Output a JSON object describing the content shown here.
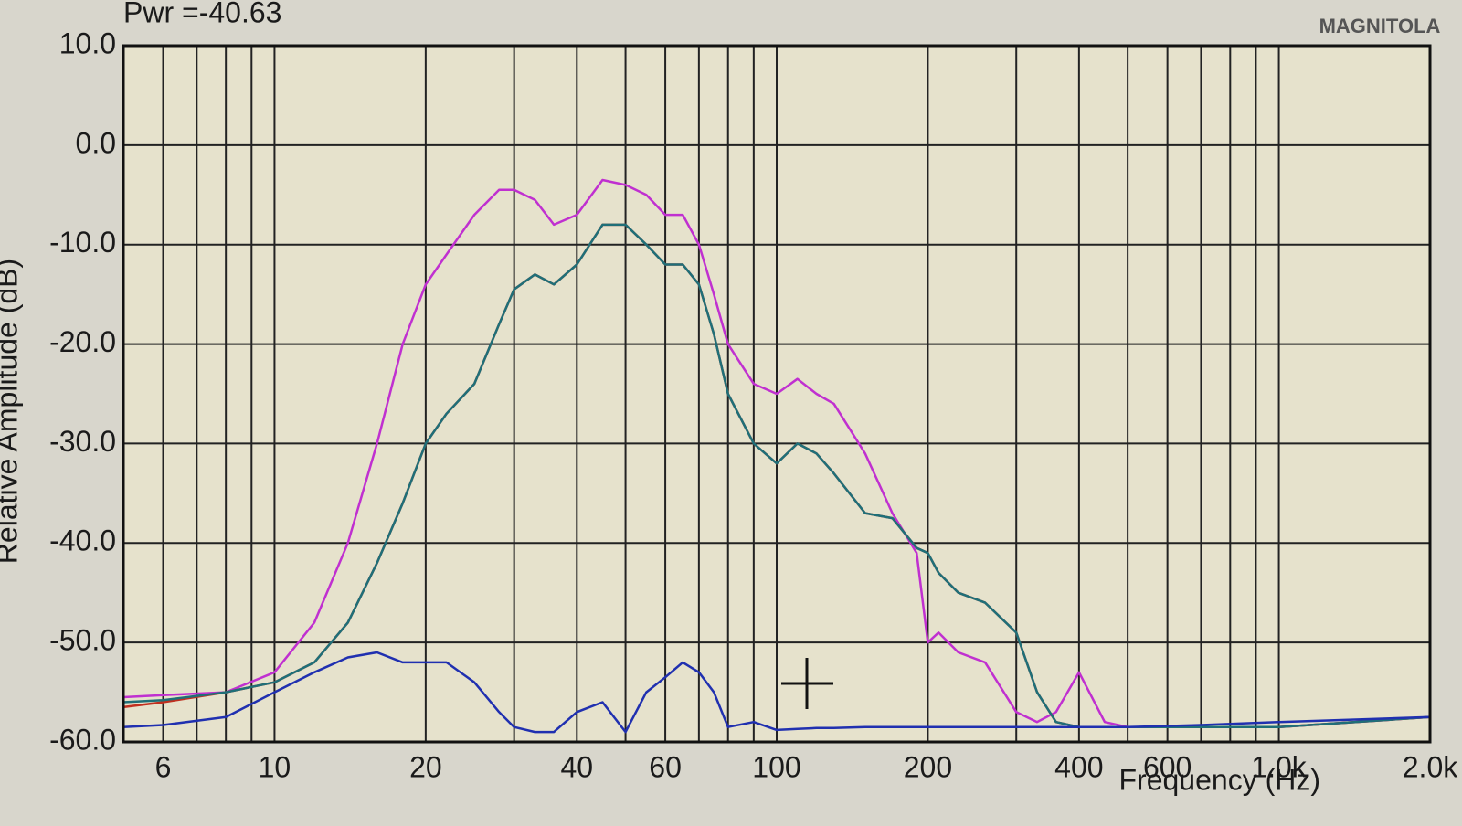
{
  "chart_data": {
    "type": "line",
    "title": "Pwr =-40.63",
    "y_label": "Relative Amplitude (dB)",
    "x_label": "Frequency (Hz)",
    "logo": "MAGNITOLA",
    "x_log": true,
    "grid": true,
    "xlim": [
      5,
      2000
    ],
    "ylim": [
      -60,
      10
    ],
    "xticks": [
      6,
      10,
      20,
      40,
      60,
      100,
      200,
      400,
      600,
      {
        "value": 1000,
        "label": "1.0k"
      },
      {
        "value": 2000,
        "label": "2.0k"
      }
    ],
    "xminor": [
      5,
      7,
      8,
      9,
      30,
      50,
      70,
      80,
      90,
      300,
      500,
      700,
      800,
      900
    ],
    "yticks": [
      {
        "value": -60,
        "label": "-60.0"
      },
      {
        "value": -50,
        "label": "-50.0"
      },
      {
        "value": -40,
        "label": "-40.0"
      },
      {
        "value": -30,
        "label": "-30.0"
      },
      {
        "value": -20,
        "label": "-20.0"
      },
      {
        "value": -10,
        "label": "-10.0"
      },
      {
        "value": 0,
        "label": "0.0"
      },
      {
        "value": 10,
        "label": "10.0"
      }
    ],
    "x": [
      5,
      6,
      8,
      10,
      12,
      14,
      16,
      18,
      20,
      22,
      25,
      28,
      30,
      33,
      36,
      40,
      45,
      50,
      55,
      60,
      65,
      70,
      75,
      80,
      90,
      100,
      110,
      120,
      130,
      150,
      170,
      190,
      200,
      210,
      230,
      260,
      300,
      330,
      360,
      400,
      450,
      500,
      700,
      1000,
      2000
    ],
    "series": [
      {
        "color": "#c030d0",
        "values": [
          -55.5,
          -55.3,
          -55,
          -53,
          -48,
          -40,
          -30,
          -20,
          -14,
          -11,
          -7,
          -4.5,
          -4.5,
          -5.5,
          -8,
          -7,
          -3.5,
          -4,
          -5,
          -7,
          -7,
          -10,
          -15,
          -20,
          -24,
          -25,
          -23.5,
          -25,
          -26,
          -31,
          -37,
          -41,
          -50,
          -49,
          -51,
          -52,
          -57,
          -58,
          -57,
          -53,
          -58,
          -58.5,
          -58.5,
          -58.5,
          -57.5
        ]
      },
      {
        "color": "#c03020",
        "values": [
          -56.5,
          -56,
          -55,
          -54,
          -52,
          -48,
          -42,
          -36,
          -30,
          -27,
          -24,
          -18,
          -14.5,
          -13,
          -14,
          -12,
          -8,
          -8,
          -10,
          -12,
          -12,
          -14,
          -19,
          -25,
          -30,
          -32,
          -30,
          -31,
          -33,
          -37,
          -37.5,
          -40.5,
          -41,
          -43,
          -45,
          -46,
          -49,
          -55,
          -58,
          -58.5,
          -58.5,
          -58.5,
          -58.5,
          -58.5,
          -57.5
        ]
      },
      {
        "color": "#1f6f78",
        "values": [
          -56,
          -55.8,
          -55,
          -54,
          -52,
          -48,
          -42,
          -36,
          -30,
          -27,
          -24,
          -18,
          -14.5,
          -13,
          -14,
          -12,
          -8,
          -8,
          -10,
          -12,
          -12,
          -14,
          -19,
          -25,
          -30,
          -32,
          -30,
          -31,
          -33,
          -37,
          -37.5,
          -40.5,
          -41,
          -43,
          -45,
          -46,
          -49,
          -55,
          -58,
          -58.5,
          -58.5,
          -58.5,
          -58.5,
          -58.5,
          -57.5
        ]
      },
      {
        "color": "#2030b0",
        "values": [
          -58.5,
          -58.3,
          -57.5,
          -55,
          -53,
          -51.5,
          -51,
          -52,
          -52,
          -52,
          -54,
          -57,
          -58.5,
          -59,
          -59,
          -57,
          -56,
          -59,
          -55,
          -53.5,
          -52,
          -53,
          -55,
          -58.5,
          -58,
          -58.8,
          -58.7,
          -58.6,
          -58.6,
          -58.5,
          -58.5,
          -58.5,
          -58.5,
          -58.5,
          -58.5,
          -58.5,
          -58.5,
          -58.5,
          -58.5,
          -58.5,
          -58.5,
          -58.5,
          -58.3,
          -58,
          -57.5
        ]
      }
    ]
  }
}
